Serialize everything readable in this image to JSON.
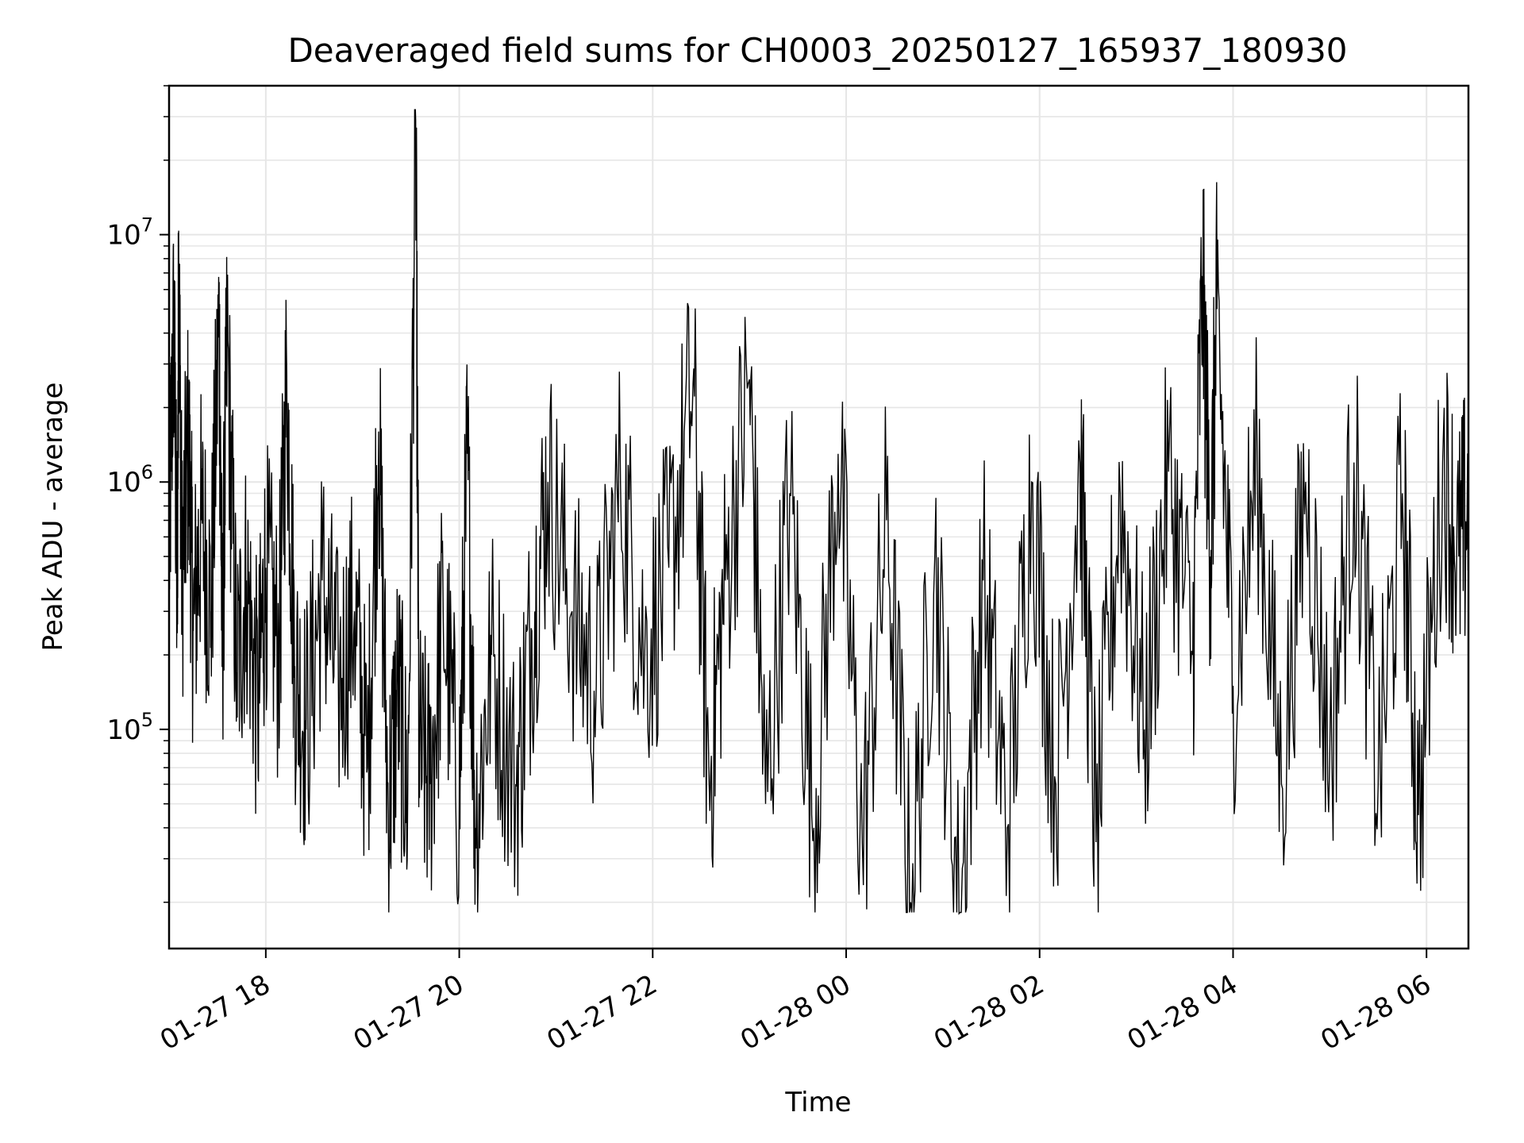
{
  "chart_data": {
    "type": "line",
    "title": "Deaveraged field sums for CH0003_20250127_165937_180930",
    "xlabel": "Time",
    "ylabel": "Peak ADU - average",
    "yscale": "log",
    "grid": "major and minor",
    "line_color": "#000000",
    "grid_color": "#e6e6e6",
    "x_ticks": [
      "01-27 18",
      "01-27 20",
      "01-27 22",
      "01-28 00",
      "01-28 02",
      "01-28 04",
      "01-28 06"
    ],
    "y_ticks": [
      {
        "base": "10",
        "exp": "5",
        "value": 100000
      },
      {
        "base": "10",
        "exp": "6",
        "value": 1000000
      },
      {
        "base": "10",
        "exp": "7",
        "value": 10000000
      }
    ],
    "xlim": [
      "2025-01-27 17:00",
      "2025-01-28 06:26"
    ],
    "ylim": [
      13000,
      40000000
    ],
    "series": [
      {
        "points": [
          [
            "2025-01-27 17:00",
            500000
          ],
          [
            "2025-01-27 17:03",
            4600000
          ],
          [
            "2025-01-27 17:05",
            300000
          ],
          [
            "2025-01-27 17:06",
            7800000
          ],
          [
            "2025-01-27 17:08",
            400000
          ],
          [
            "2025-01-27 17:12",
            1500000
          ],
          [
            "2025-01-27 17:15",
            250000
          ],
          [
            "2025-01-27 17:20",
            700000
          ],
          [
            "2025-01-27 17:26",
            300000
          ],
          [
            "2025-01-27 17:31",
            4600000
          ],
          [
            "2025-01-27 17:33",
            200000
          ],
          [
            "2025-01-27 17:36",
            3800000
          ],
          [
            "2025-01-27 17:42",
            170000
          ],
          [
            "2025-01-27 17:48",
            400000
          ],
          [
            "2025-01-27 17:55",
            120000
          ],
          [
            "2025-01-27 18:00",
            450000
          ],
          [
            "2025-01-27 18:08",
            200000
          ],
          [
            "2025-01-27 18:13",
            2700000
          ],
          [
            "2025-01-27 18:18",
            180000
          ],
          [
            "2025-01-27 18:25",
            100000
          ],
          [
            "2025-01-27 18:35",
            400000
          ],
          [
            "2025-01-27 18:45",
            150000
          ],
          [
            "2025-01-27 18:55",
            300000
          ],
          [
            "2025-01-27 19:03",
            70000
          ],
          [
            "2025-01-27 19:10",
            1600000
          ],
          [
            "2025-01-27 19:16",
            45000
          ],
          [
            "2025-01-27 19:22",
            150000
          ],
          [
            "2025-01-27 19:28",
            50000
          ],
          [
            "2025-01-27 19:33",
            29000000
          ],
          [
            "2025-01-27 19:35",
            80000
          ],
          [
            "2025-01-27 19:42",
            60000
          ],
          [
            "2025-01-27 19:50",
            300000
          ],
          [
            "2025-01-27 20:00",
            50000
          ],
          [
            "2025-01-27 20:05",
            1300000
          ],
          [
            "2025-01-27 20:10",
            40000
          ],
          [
            "2025-01-27 20:20",
            200000
          ],
          [
            "2025-01-27 20:35",
            60000
          ],
          [
            "2025-01-27 20:45",
            250000
          ],
          [
            "2025-01-27 20:55",
            1000000
          ],
          [
            "2025-01-27 21:10",
            300000
          ],
          [
            "2025-01-27 21:25",
            150000
          ],
          [
            "2025-01-27 21:40",
            1000000
          ],
          [
            "2025-01-27 21:55",
            200000
          ],
          [
            "2025-01-27 22:10",
            450000
          ],
          [
            "2025-01-27 22:25",
            2500000
          ],
          [
            "2025-01-27 22:35",
            60000
          ],
          [
            "2025-01-27 22:45",
            400000
          ],
          [
            "2025-01-27 23:00",
            2600000
          ],
          [
            "2025-01-27 23:10",
            50000
          ],
          [
            "2025-01-27 23:25",
            900000
          ],
          [
            "2025-01-27 23:40",
            40000
          ],
          [
            "2025-01-27 23:55",
            1300000
          ],
          [
            "2025-01-28 00:10",
            35000
          ],
          [
            "2025-01-28 00:25",
            700000
          ],
          [
            "2025-01-28 00:40",
            20000
          ],
          [
            "2025-01-28 00:55",
            500000
          ],
          [
            "2025-01-28 01:10",
            18000
          ],
          [
            "2025-01-28 01:25",
            400000
          ],
          [
            "2025-01-28 01:40",
            40000
          ],
          [
            "2025-01-28 01:55",
            1000000
          ],
          [
            "2025-01-28 02:10",
            60000
          ],
          [
            "2025-01-28 02:25",
            1200000
          ],
          [
            "2025-01-28 02:35",
            35000
          ],
          [
            "2025-01-28 02:50",
            900000
          ],
          [
            "2025-01-28 03:05",
            100000
          ],
          [
            "2025-01-28 03:20",
            1100000
          ],
          [
            "2025-01-28 03:35",
            200000
          ],
          [
            "2025-01-28 03:41",
            6800000
          ],
          [
            "2025-01-28 03:46",
            500000
          ],
          [
            "2025-01-28 03:50",
            5000000
          ],
          [
            "2025-01-28 04:00",
            150000
          ],
          [
            "2025-01-28 04:15",
            1200000
          ],
          [
            "2025-01-28 04:30",
            60000
          ],
          [
            "2025-01-28 04:45",
            1000000
          ],
          [
            "2025-01-28 05:00",
            80000
          ],
          [
            "2025-01-28 05:15",
            1200000
          ],
          [
            "2025-01-28 05:30",
            60000
          ],
          [
            "2025-01-28 05:45",
            900000
          ],
          [
            "2025-01-28 05:55",
            45000
          ],
          [
            "2025-01-28 06:10",
            1200000
          ],
          [
            "2025-01-28 06:20",
            500000
          ],
          [
            "2025-01-28 06:26",
            800000
          ]
        ]
      }
    ]
  }
}
